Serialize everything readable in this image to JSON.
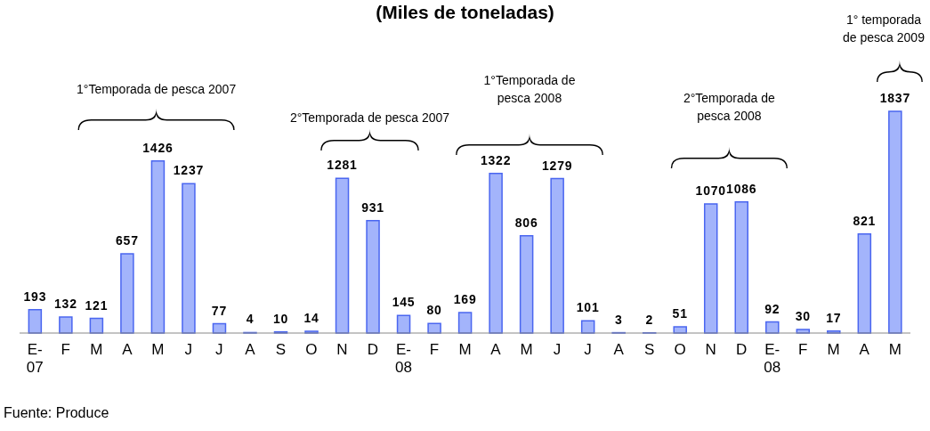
{
  "chart_data": {
    "type": "bar",
    "title": "(Miles de toneladas)",
    "categories": [
      "E-07",
      "F",
      "M",
      "A",
      "M",
      "J",
      "J",
      "A",
      "S",
      "O",
      "N",
      "D",
      "E-08",
      "F",
      "M",
      "A",
      "M",
      "J",
      "J",
      "A",
      "S",
      "O",
      "N",
      "D",
      "E-08",
      "F",
      "M",
      "A",
      "M"
    ],
    "values": [
      193,
      132,
      121,
      657,
      1426,
      1237,
      77,
      4,
      10,
      14,
      1281,
      931,
      145,
      80,
      169,
      1322,
      806,
      1279,
      101,
      3,
      2,
      51,
      1070,
      1086,
      92,
      30,
      17,
      821,
      1837
    ],
    "color": "#a3b4fb",
    "data_labels": true,
    "annotations": [
      "1°Temporada de pesca 2007",
      "2°Temporada de pesca 2007",
      "1°Temporada de pesca 2008",
      "2°Temporada de pesca 2008",
      "1° temporada de pesca 2009",
      "Fuente: Produce"
    ]
  }
}
